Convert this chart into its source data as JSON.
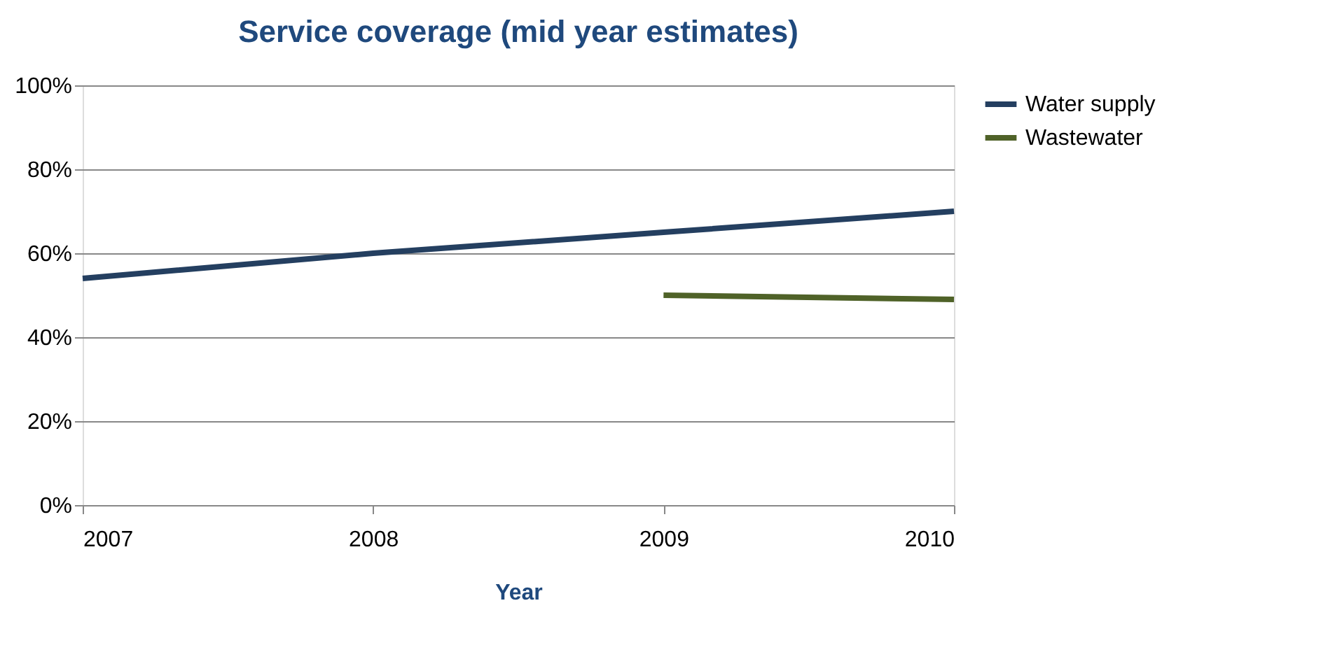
{
  "chart_data": {
    "type": "line",
    "title": "Service coverage (mid year estimates)",
    "xlabel": "Year",
    "x": [
      2007,
      2008,
      2009,
      2010
    ],
    "series": [
      {
        "name": "Water supply",
        "color": "#243f60",
        "values": [
          54,
          60,
          65,
          70
        ]
      },
      {
        "name": "Wastewater",
        "color": "#4f6228",
        "values": [
          null,
          null,
          50,
          49
        ]
      }
    ],
    "xlim": [
      2007,
      2010
    ],
    "xticks": [
      2007,
      2008,
      2009,
      2010
    ],
    "ylim": [
      0,
      100
    ],
    "yticks": [
      {
        "value": 0,
        "label": "0%"
      },
      {
        "value": 20,
        "label": "20%"
      },
      {
        "value": 40,
        "label": "40%"
      },
      {
        "value": 60,
        "label": "60%"
      },
      {
        "value": 80,
        "label": "80%"
      },
      {
        "value": 100,
        "label": "100%"
      }
    ],
    "grid": "y",
    "legend": "right",
    "marker": "none",
    "line_style": "solid"
  }
}
